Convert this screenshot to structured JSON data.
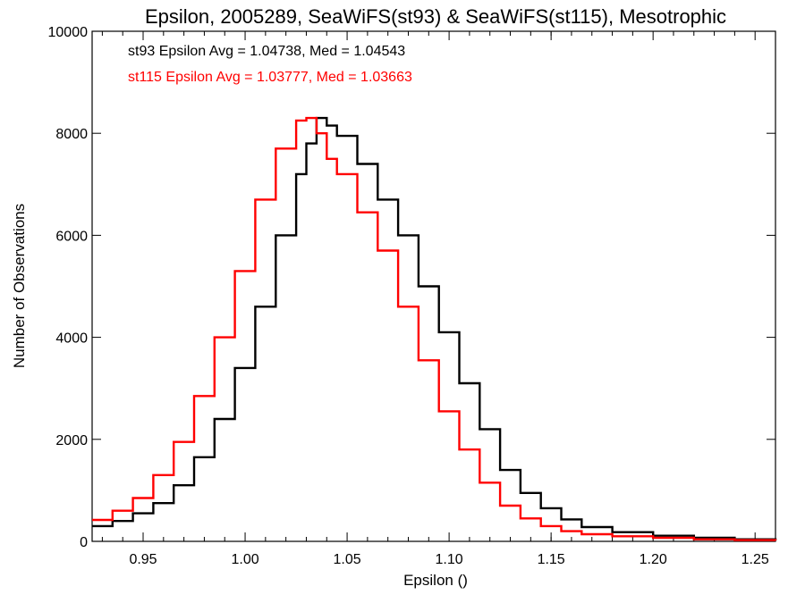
{
  "chart_data": {
    "type": "line",
    "step": true,
    "title": "Epsilon, 2005289, SeaWiFS(st93) & SeaWiFS(st115), Mesotrophic",
    "xlabel": "Epsilon ()",
    "ylabel": "Number of Observations",
    "xlim": [
      0.925,
      1.26
    ],
    "ylim": [
      0,
      10000
    ],
    "xticks": [
      "0.95",
      "1.00",
      "1.05",
      "1.10",
      "1.15",
      "1.20",
      "1.25"
    ],
    "yticks": [
      "0",
      "2000",
      "4000",
      "6000",
      "8000",
      "10000"
    ],
    "grid": false,
    "legend": "top-left",
    "annotations": [
      {
        "text": "st93 Epsilon Avg = 1.04738, Med = 1.04543",
        "color": "#000000"
      },
      {
        "text": "st115 Epsilon Avg = 1.03777, Med = 1.03663",
        "color": "#ff0000"
      }
    ],
    "series": [
      {
        "color": "#000000",
        "x": [
          0.925,
          0.935,
          0.945,
          0.955,
          0.965,
          0.975,
          0.985,
          0.995,
          1.005,
          1.015,
          1.025,
          1.03,
          1.035,
          1.04,
          1.045,
          1.055,
          1.065,
          1.075,
          1.085,
          1.095,
          1.105,
          1.115,
          1.125,
          1.135,
          1.145,
          1.155,
          1.165,
          1.18,
          1.2,
          1.22,
          1.24,
          1.26
        ],
        "y": [
          300,
          400,
          550,
          750,
          1100,
          1650,
          2400,
          3400,
          4600,
          6000,
          7200,
          7800,
          8300,
          8150,
          7950,
          7400,
          6700,
          6000,
          5000,
          4100,
          3100,
          2200,
          1400,
          950,
          650,
          430,
          280,
          180,
          110,
          70,
          40,
          20
        ]
      },
      {
        "color": "#ff0000",
        "x": [
          0.925,
          0.935,
          0.945,
          0.955,
          0.965,
          0.975,
          0.985,
          0.995,
          1.005,
          1.015,
          1.025,
          1.03,
          1.035,
          1.04,
          1.045,
          1.055,
          1.065,
          1.075,
          1.085,
          1.095,
          1.105,
          1.115,
          1.125,
          1.135,
          1.145,
          1.155,
          1.165,
          1.18,
          1.2,
          1.22,
          1.24,
          1.26
        ],
        "y": [
          420,
          600,
          850,
          1300,
          1950,
          2850,
          4000,
          5300,
          6700,
          7700,
          8250,
          8300,
          8000,
          7500,
          7200,
          6450,
          5700,
          4600,
          3550,
          2550,
          1800,
          1150,
          700,
          450,
          300,
          200,
          140,
          100,
          70,
          40,
          25,
          15
        ]
      }
    ]
  }
}
